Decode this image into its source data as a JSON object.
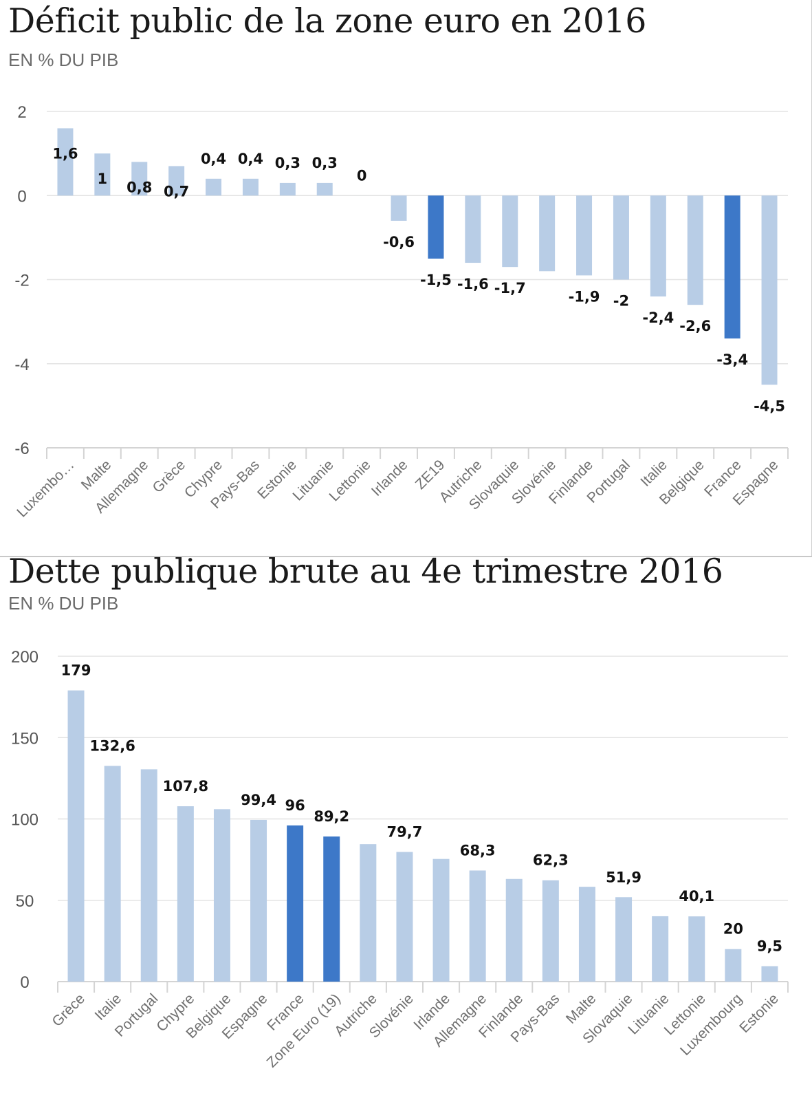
{
  "colors": {
    "bar": "#b8cde6",
    "highlight": "#3d78c8"
  },
  "chart_data": [
    {
      "type": "bar",
      "title": "Déficit public de la zone euro en 2016",
      "subtitle": "EN % DU PIB",
      "categories": [
        "Luxembo…",
        "Malte",
        "Allemagne",
        "Grèce",
        "Chypre",
        "Pays-Bas",
        "Estonie",
        "Lituanie",
        "Lettonie",
        "Irlande",
        "ZE19",
        "Autriche",
        "Slovaquie",
        "Slovénie",
        "Finlande",
        "Portugal",
        "Italie",
        "Belgique",
        "France",
        "Espagne"
      ],
      "values": [
        1.6,
        1,
        0.8,
        0.7,
        0.4,
        0.4,
        0.3,
        0.3,
        0,
        -0.6,
        -1.5,
        -1.6,
        -1.7,
        -1.8,
        -1.9,
        -2,
        -2.4,
        -2.6,
        -3.4,
        -4.5
      ],
      "data_labels": [
        "1,6",
        "1",
        "0,8",
        "0,7",
        "0,4",
        "0,4",
        "0,3",
        "0,3",
        "0",
        "-0,6",
        "-1,5",
        "-1,6",
        "-1,7",
        "",
        "-1,9",
        "-2",
        "-2,4",
        "-2,6",
        "-3,4",
        "-4,5"
      ],
      "highlight": [
        "ZE19",
        "France"
      ],
      "ylim": [
        -6,
        2
      ],
      "yticks": [
        2,
        0,
        -2,
        -4,
        -6
      ],
      "grid": true,
      "legend": "none"
    },
    {
      "type": "bar",
      "title": "Dette publique brute au 4e trimestre 2016",
      "subtitle": "EN % DU PIB",
      "categories": [
        "Grèce",
        "Italie",
        "Portugal",
        "Chypre",
        "Belgique",
        "Espagne",
        "France",
        "Zone Euro (19)",
        "Autriche",
        "Slovénie",
        "Irlande",
        "Allemagne",
        "Finlande",
        "Pays-Bas",
        "Malte",
        "Slovaquie",
        "Lituanie",
        "Lettonie",
        "Luxembourg",
        "Estonie"
      ],
      "values": [
        179,
        132.6,
        130.5,
        107.8,
        106,
        99.4,
        96,
        89.2,
        84.5,
        79.7,
        75.4,
        68.3,
        63.1,
        62.3,
        58.3,
        51.9,
        40.2,
        40.1,
        20,
        9.5
      ],
      "data_labels": [
        "179",
        "132,6",
        "",
        "107,8",
        "",
        "99,4",
        "96",
        "89,2",
        "",
        "79,7",
        "",
        "68,3",
        "",
        "62,3",
        "",
        "51,9",
        "",
        "40,1",
        "20",
        "9,5"
      ],
      "highlight": [
        "France",
        "Zone Euro (19)"
      ],
      "ylim": [
        0,
        200
      ],
      "yticks": [
        200,
        150,
        100,
        50,
        0
      ],
      "grid": true,
      "legend": "none"
    }
  ]
}
